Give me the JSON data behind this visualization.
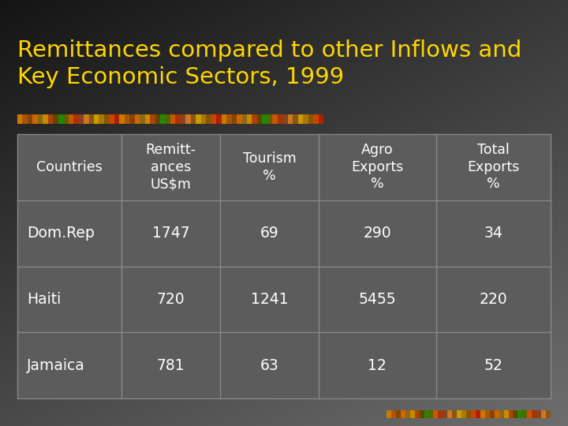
{
  "title": "Remittances compared to other Inflows and\nKey Economic Sectors, 1999",
  "title_color": "#FFD700",
  "bg_color_top": "#111111",
  "bg_color_bottom": "#555555",
  "table_bg": "#5c5c5c",
  "cell_text_color": "#ffffff",
  "col_headers": [
    "Countries",
    "Remitt-\nances\nUS$m",
    "Tourism\n%",
    "Agro\nExports\n%",
    "Total\nExports\n%"
  ],
  "rows": [
    [
      "Dom.Rep",
      "1747",
      "69",
      "290",
      "34"
    ],
    [
      "Haiti",
      "720",
      "1241",
      "5455",
      "220"
    ],
    [
      "Jamaica",
      "781",
      "63",
      "12",
      "52"
    ]
  ],
  "stripe_colors": [
    "#CC8800",
    "#886600",
    "#AA4400",
    "#664400",
    "#228800",
    "#445500",
    "#CC6600"
  ],
  "figsize": [
    7.2,
    5.4
  ],
  "dpi": 100
}
